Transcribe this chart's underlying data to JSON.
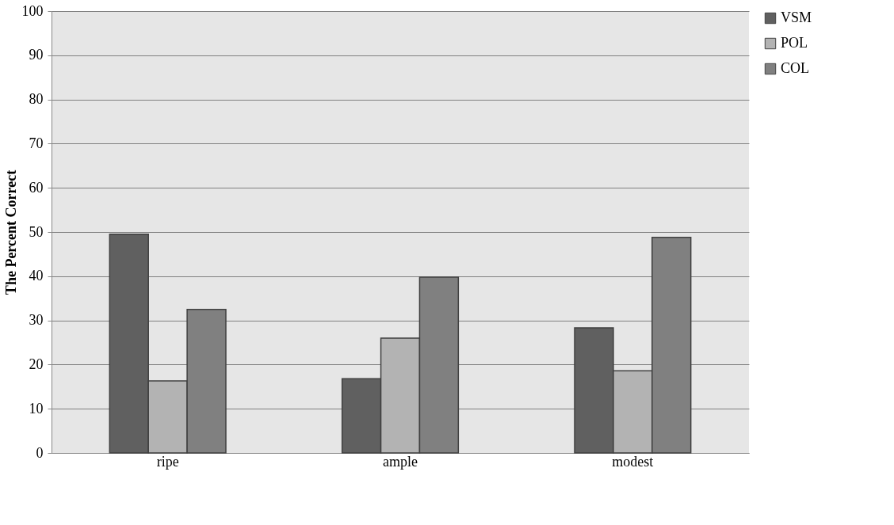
{
  "chart_data": {
    "type": "bar",
    "ylabel": "The Percent Correct",
    "categories": [
      "ripe",
      "ample",
      "modest"
    ],
    "series": [
      {
        "name": "VSM",
        "color": "#606060",
        "values": [
          49.5,
          16.8,
          28.3
        ]
      },
      {
        "name": "POL",
        "color": "#b3b3b3",
        "values": [
          16.3,
          26.0,
          18.6
        ]
      },
      {
        "name": "COL",
        "color": "#808080",
        "values": [
          32.5,
          39.8,
          48.8
        ]
      }
    ],
    "ylim": [
      0,
      100
    ],
    "yticks": [
      0,
      10,
      20,
      30,
      40,
      50,
      60,
      70,
      80,
      90,
      100
    ],
    "grid": "y",
    "legend": "right"
  }
}
